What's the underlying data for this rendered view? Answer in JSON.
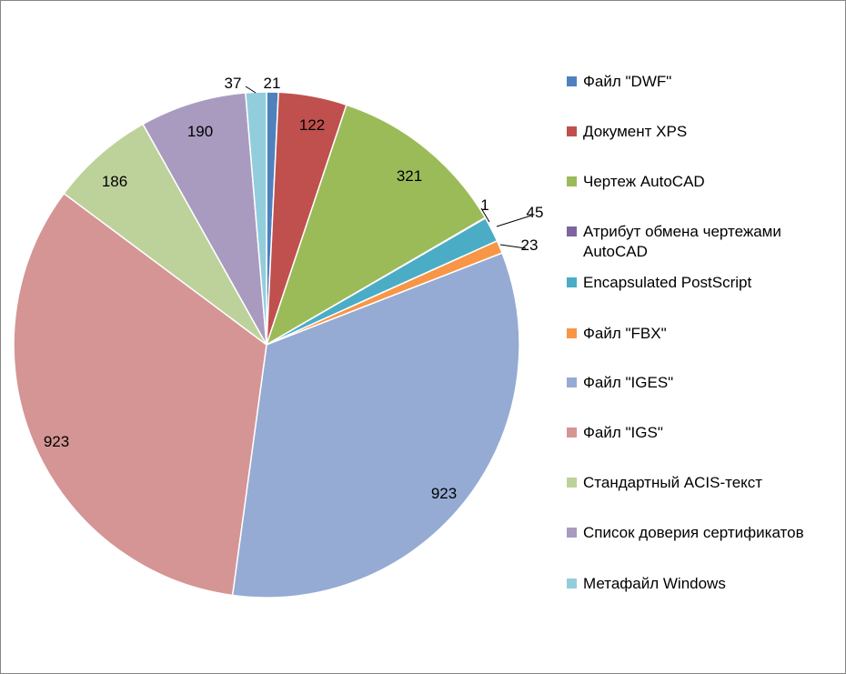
{
  "chart_data": {
    "type": "pie",
    "title": "",
    "legend_position": "right",
    "slices": [
      {
        "label": "Файл \"DWF\"",
        "value": 21,
        "color": "#4F81BD"
      },
      {
        "label": "Документ XPS",
        "value": 122,
        "color": "#C0504D"
      },
      {
        "label": "Чертеж AutoCAD",
        "value": 321,
        "color": "#9BBB59"
      },
      {
        "label": "Атрибут обмена чертежами AutoCAD",
        "value": 1,
        "color": "#8064A2"
      },
      {
        "label": "Encapsulated PostScript",
        "value": 45,
        "color": "#4BACC6"
      },
      {
        "label": "Файл \"FBX\"",
        "value": 23,
        "color": "#F79646"
      },
      {
        "label": "Файл \"IGES\"",
        "value": 923,
        "color": "#95ABD3"
      },
      {
        "label": "Файл \"IGS\"",
        "value": 923,
        "color": "#D59594"
      },
      {
        "label": "Стандартный ACIS-текст",
        "value": 186,
        "color": "#BDD29A"
      },
      {
        "label": "Список доверия сертификатов",
        "value": 190,
        "color": "#A99BBF"
      },
      {
        "label": "Метафайл Windows",
        "value": 37,
        "color": "#92CDDC"
      }
    ]
  }
}
